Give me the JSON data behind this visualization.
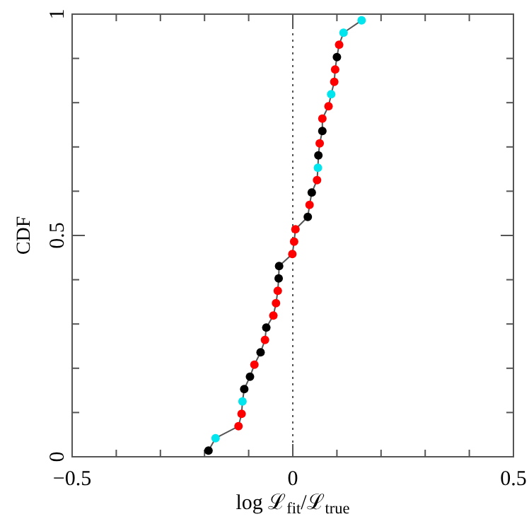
{
  "chart_data": {
    "type": "line",
    "xlabel": "log ℒ$_{fit}$/ℒ$_{true}$",
    "ylabel": "CDF",
    "xlim": [
      -0.5,
      0.5
    ],
    "ylim": [
      0,
      1
    ],
    "xticks": [
      -0.5,
      {
        "value": -0.4,
        "label": null
      },
      {
        "value": -0.3,
        "label": null
      },
      {
        "value": -0.2,
        "label": null
      },
      {
        "value": -0.1,
        "label": null
      },
      0,
      {
        "value": 0.1,
        "label": null
      },
      {
        "value": 0.2,
        "label": null
      },
      {
        "value": 0.3,
        "label": null
      },
      {
        "value": 0.4,
        "label": null
      },
      0.5
    ],
    "yticks": [
      0,
      {
        "value": 0.1,
        "label": null
      },
      {
        "value": 0.2,
        "label": null
      },
      {
        "value": 0.3,
        "label": null
      },
      {
        "value": 0.4,
        "label": null
      },
      0.5,
      {
        "value": 0.6,
        "label": null
      },
      {
        "value": 0.7,
        "label": null
      },
      {
        "value": 0.8,
        "label": null
      },
      {
        "value": 0.9,
        "label": null
      },
      1
    ],
    "marker": "circle",
    "line_style": "solid",
    "ref_lines": [
      {
        "axis": "x",
        "value": 0,
        "label": null,
        "color": "#555555",
        "line_style": "dotted"
      }
    ],
    "series": [
      {
        "color": "#555555",
        "x": [
          -0.191,
          -0.175,
          -0.123,
          -0.116,
          -0.114,
          -0.11,
          -0.097,
          -0.087,
          -0.073,
          -0.063,
          -0.06,
          -0.044,
          -0.038,
          -0.034,
          -0.032,
          -0.031,
          -0.001,
          0.003,
          0.006,
          0.034,
          0.038,
          0.043,
          0.055,
          0.057,
          0.058,
          0.061,
          0.067,
          0.067,
          0.081,
          0.087,
          0.094,
          0.096,
          0.1,
          0.105,
          0.115,
          0.156
        ],
        "values": [
          0.014,
          0.042,
          0.069,
          0.097,
          0.125,
          0.153,
          0.181,
          0.208,
          0.236,
          0.264,
          0.292,
          0.319,
          0.347,
          0.375,
          0.403,
          0.431,
          0.458,
          0.486,
          0.514,
          0.542,
          0.569,
          0.597,
          0.625,
          0.653,
          0.681,
          0.708,
          0.736,
          0.764,
          0.792,
          0.819,
          0.847,
          0.875,
          0.903,
          0.931,
          0.958,
          0.986
        ],
        "colors": [
          "#000000",
          "#00e5ee",
          "#ff0000",
          "#ff0000",
          "#00e5ee",
          "#000000",
          "#000000",
          "#ff0000",
          "#000000",
          "#ff0000",
          "#000000",
          "#ff0000",
          "#ff0000",
          "#ff0000",
          "#000000",
          "#000000",
          "#ff0000",
          "#ff0000",
          "#ff0000",
          "#000000",
          "#ff0000",
          "#000000",
          "#ff0000",
          "#00e5ee",
          "#000000",
          "#ff0000",
          "#000000",
          "#ff0000",
          "#ff0000",
          "#00e5ee",
          "#ff0000",
          "#ff0000",
          "#000000",
          "#ff0000",
          "#00e5ee",
          "#00e5ee"
        ]
      }
    ]
  }
}
